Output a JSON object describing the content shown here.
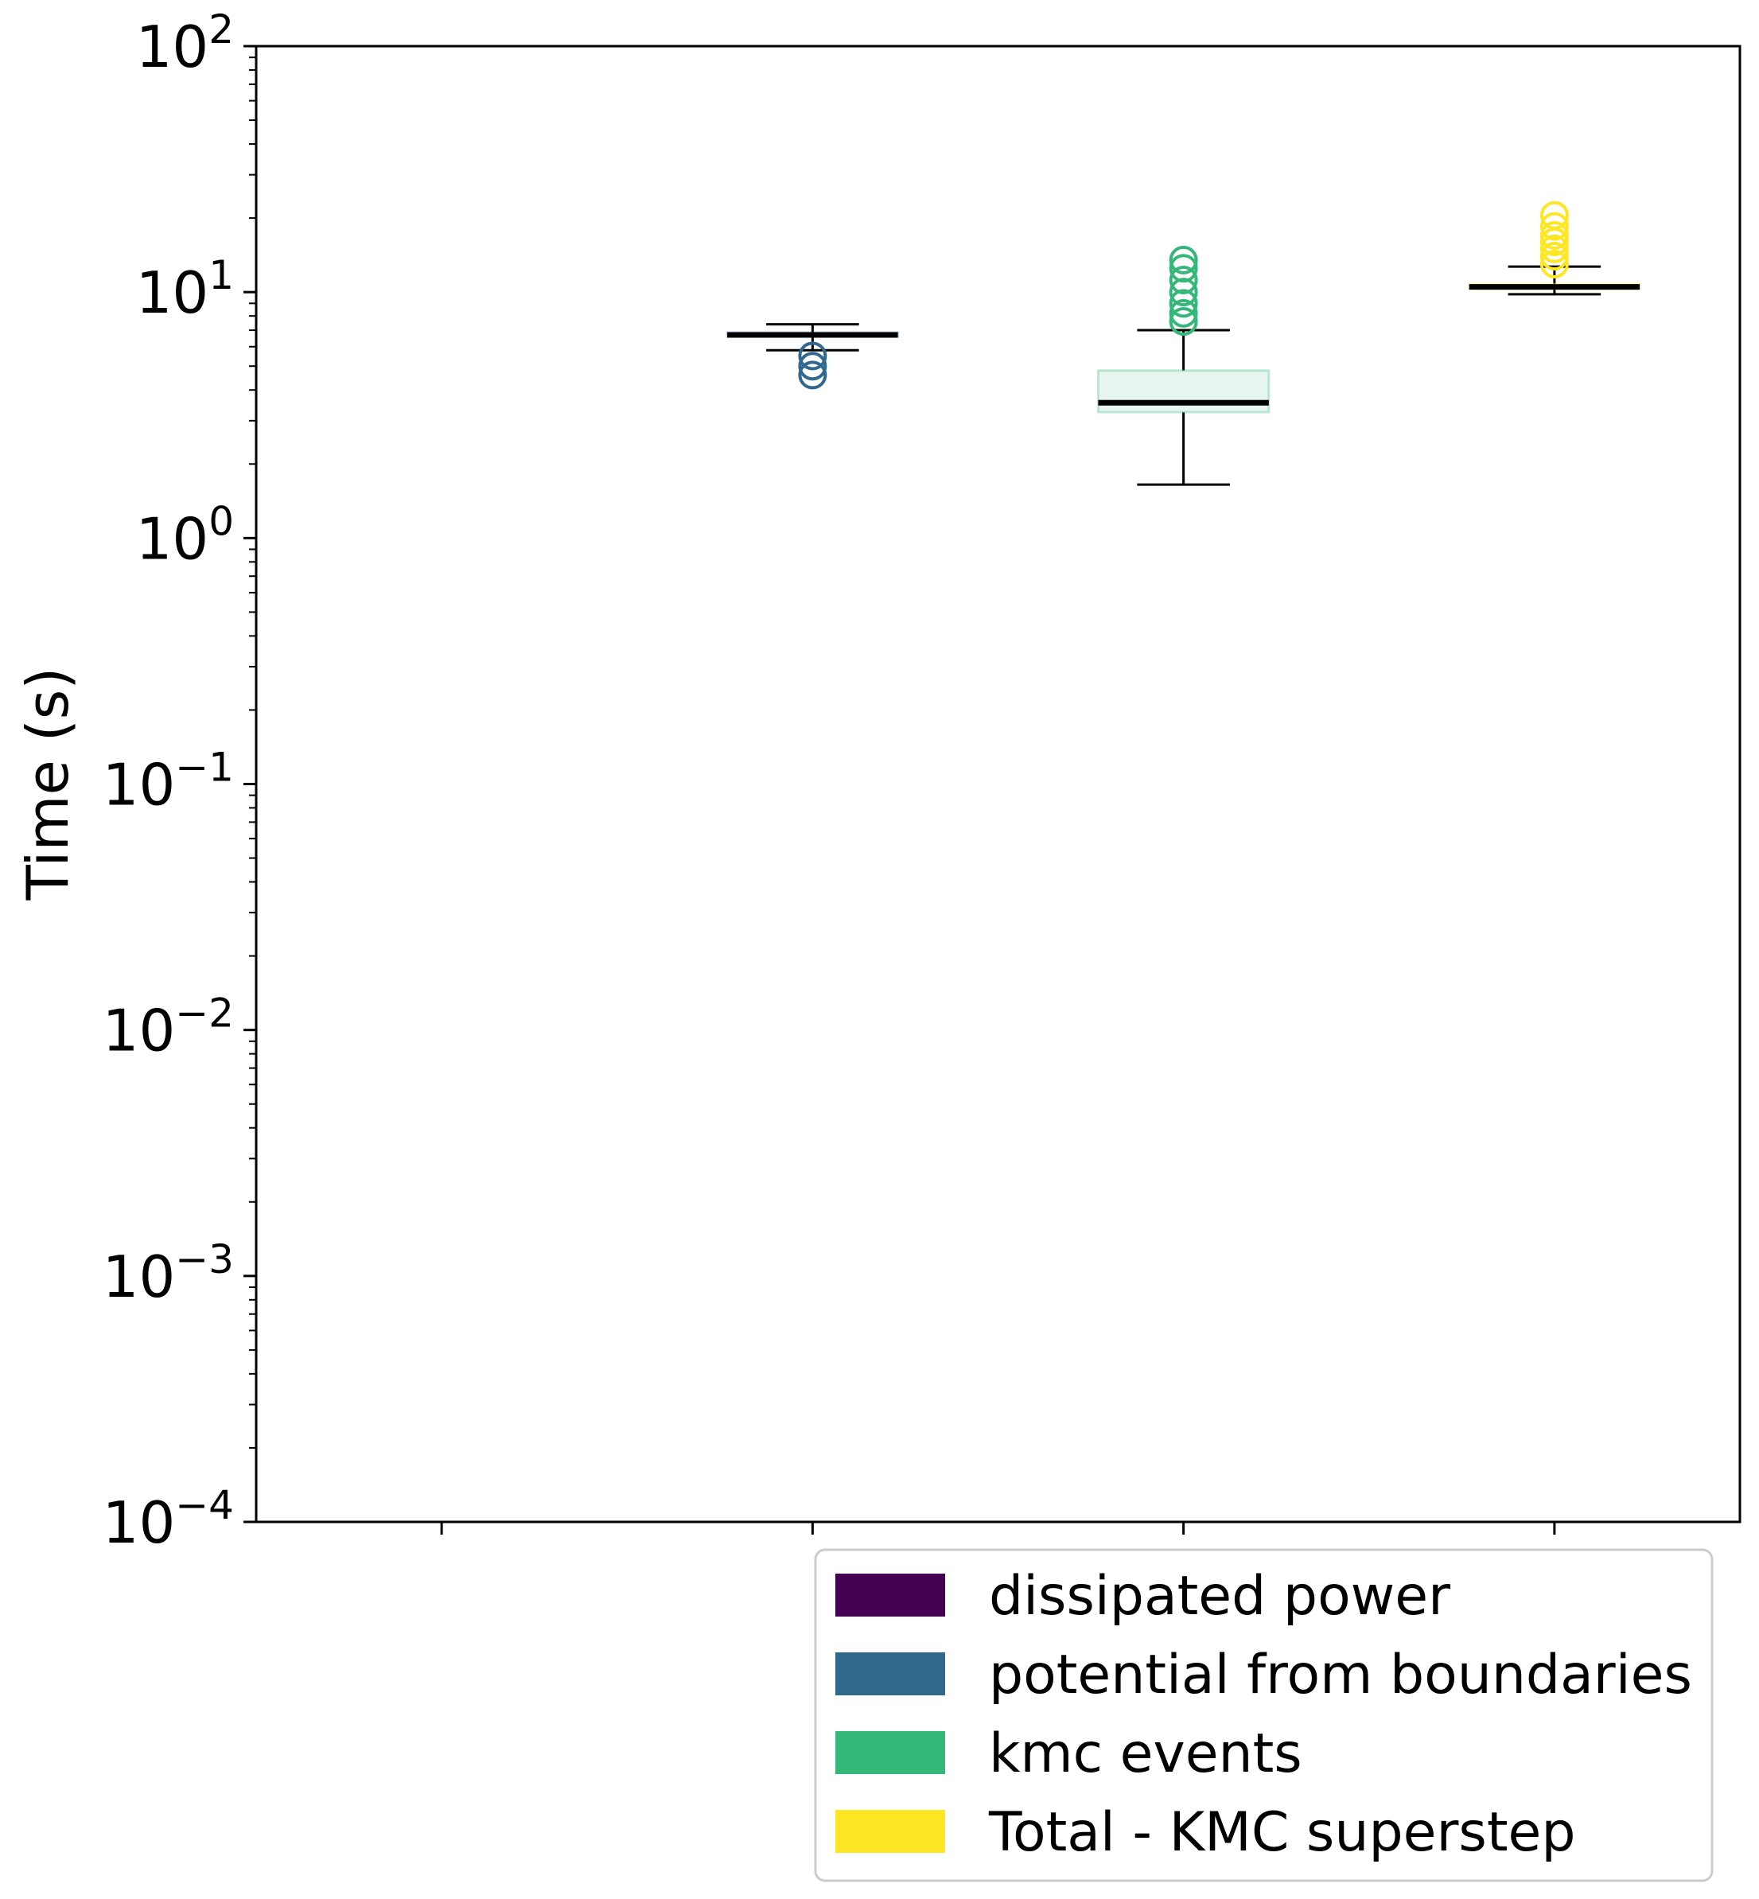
{
  "chart_data": {
    "type": "box",
    "ylabel": "Time (s)",
    "yscale": "log",
    "ylim": [
      0.0001,
      100
    ],
    "yticks": [
      {
        "base": "10",
        "exp": "2"
      },
      {
        "base": "10",
        "exp": "1"
      },
      {
        "base": "10",
        "exp": "0"
      },
      {
        "base": "10",
        "exp": "−1"
      },
      {
        "base": "10",
        "exp": "−2"
      },
      {
        "base": "10",
        "exp": "−3"
      },
      {
        "base": "10",
        "exp": "−4"
      }
    ],
    "grid": false,
    "legend_position": "below plot, right",
    "series": [
      {
        "name": "dissipated power",
        "color": "#440154",
        "has_data": false
      },
      {
        "name": "potential from boundaries",
        "color": "#31688e",
        "has_data": true,
        "whisker_low": 5.8,
        "q1": 6.6,
        "median": 6.7,
        "q3": 6.85,
        "whisker_high": 7.4,
        "outliers": [
          4.6,
          5.0,
          5.5
        ]
      },
      {
        "name": "kmc events",
        "color": "#35b779",
        "has_data": true,
        "whisker_low": 1.65,
        "q1": 3.25,
        "median": 3.55,
        "q3": 4.8,
        "whisker_high": 7.0,
        "outliers": [
          7.6,
          8.2,
          9.0,
          10.0,
          11.2,
          12.5,
          13.5
        ]
      },
      {
        "name": "Total - KMC superstep",
        "color": "#fde725",
        "has_data": true,
        "whisker_low": 9.8,
        "q1": 10.3,
        "median": 10.5,
        "q3": 10.8,
        "whisker_high": 12.7,
        "outliers": [
          13.0,
          14.0,
          15.0,
          16.0,
          17.0,
          18.5,
          20.5
        ]
      }
    ]
  }
}
